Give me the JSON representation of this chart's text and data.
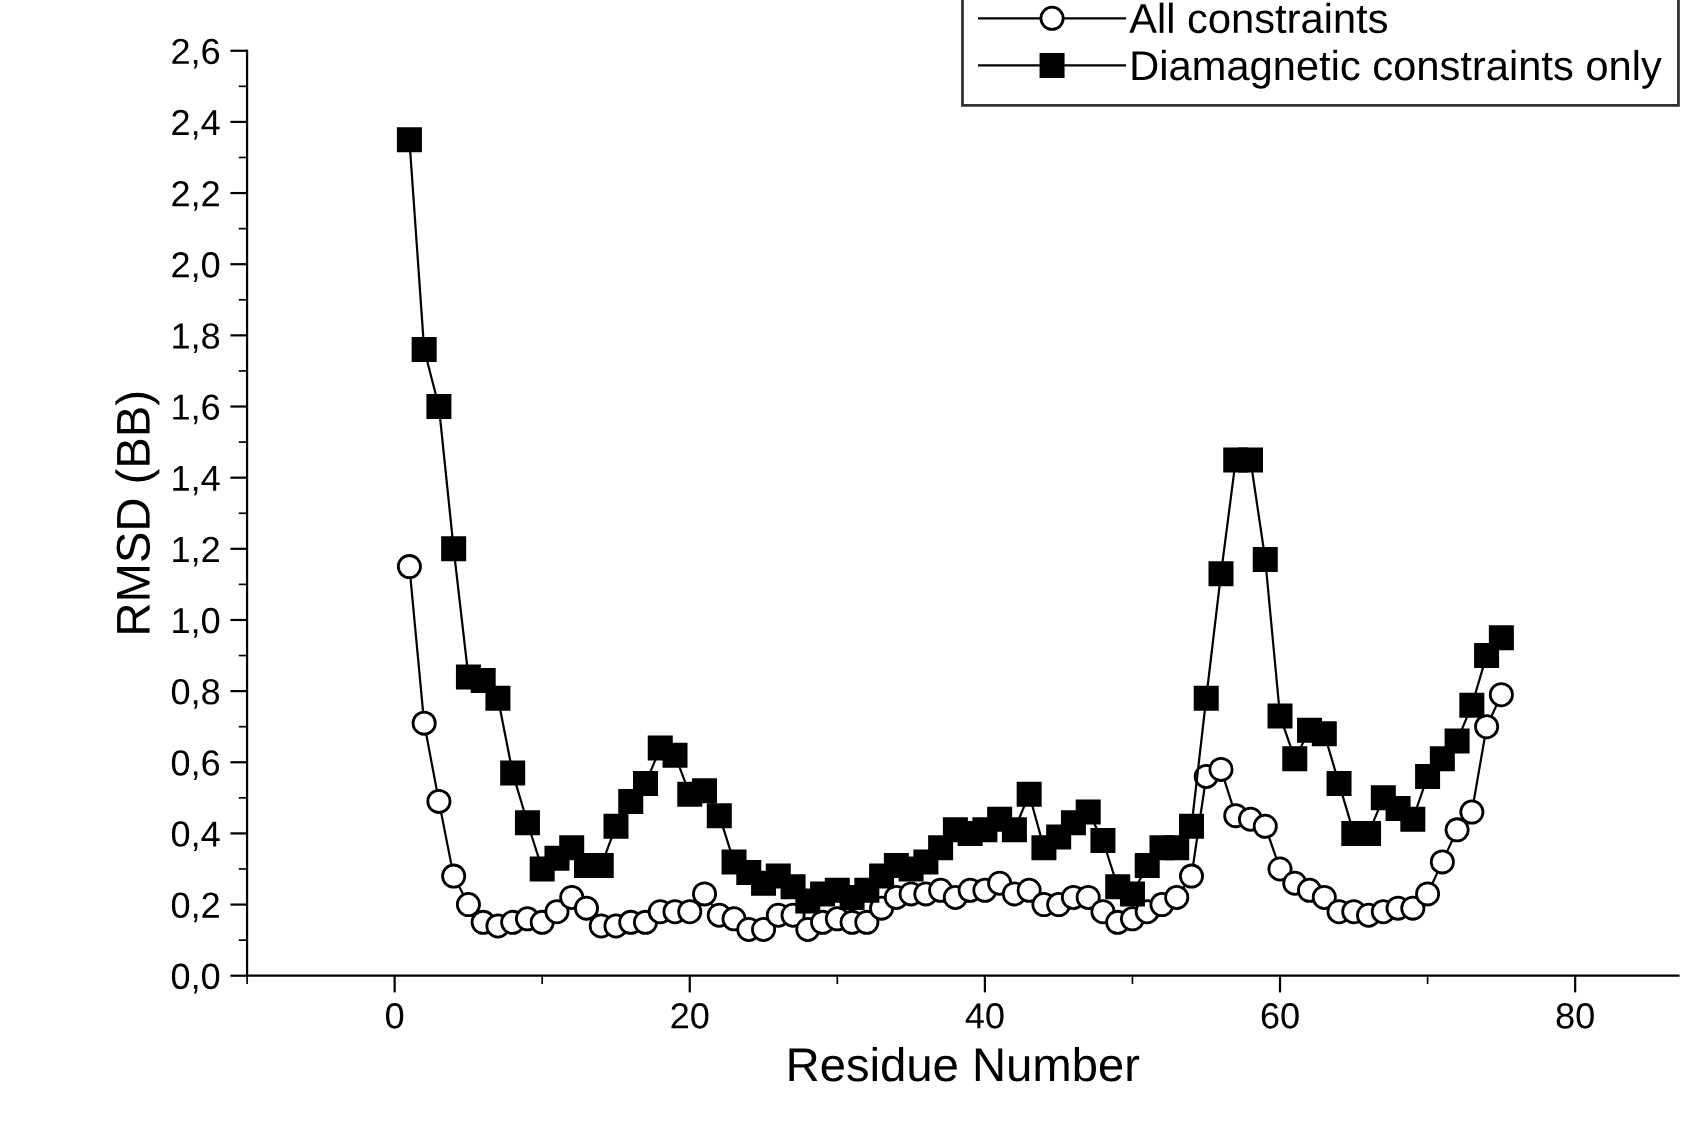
{
  "chart_data": {
    "type": "line",
    "xlabel": "Residue Number",
    "ylabel": "RMSD (BB)",
    "x": [
      1,
      2,
      3,
      4,
      5,
      6,
      7,
      8,
      9,
      10,
      11,
      12,
      13,
      14,
      15,
      16,
      17,
      18,
      19,
      20,
      21,
      22,
      23,
      24,
      25,
      26,
      27,
      28,
      29,
      30,
      31,
      32,
      33,
      34,
      35,
      36,
      37,
      38,
      39,
      40,
      41,
      42,
      43,
      44,
      45,
      46,
      47,
      48,
      49,
      50,
      51,
      52,
      53,
      54,
      55,
      56,
      57,
      58,
      59,
      60,
      61,
      62,
      63,
      64,
      65,
      66,
      67,
      68,
      69,
      70,
      71,
      72,
      73,
      74,
      75
    ],
    "series": [
      {
        "name": "All constraints",
        "color": "#000000",
        "marker": "circle",
        "values": [
          1.15,
          0.71,
          0.49,
          0.28,
          0.2,
          0.15,
          0.14,
          0.15,
          0.16,
          0.15,
          0.18,
          0.22,
          0.19,
          0.14,
          0.14,
          0.15,
          0.15,
          0.18,
          0.18,
          0.18,
          0.23,
          0.17,
          0.16,
          0.13,
          0.13,
          0.17,
          0.17,
          0.13,
          0.15,
          0.16,
          0.15,
          0.15,
          0.19,
          0.22,
          0.23,
          0.23,
          0.24,
          0.22,
          0.24,
          0.24,
          0.26,
          0.23,
          0.24,
          0.2,
          0.2,
          0.22,
          0.22,
          0.18,
          0.15,
          0.16,
          0.18,
          0.2,
          0.22,
          0.28,
          0.56,
          0.58,
          0.45,
          0.44,
          0.42,
          0.3,
          0.26,
          0.24,
          0.22,
          0.18,
          0.18,
          0.17,
          0.18,
          0.19,
          0.19,
          0.23,
          0.32,
          0.41,
          0.46,
          0.7,
          0.79
        ]
      },
      {
        "name": "Diamagnetic constraints only",
        "color": "#000000",
        "marker": "square",
        "values": [
          2.35,
          1.76,
          1.6,
          1.2,
          0.84,
          0.83,
          0.78,
          0.57,
          0.43,
          0.3,
          0.33,
          0.36,
          0.31,
          0.31,
          0.42,
          0.49,
          0.54,
          0.64,
          0.62,
          0.51,
          0.52,
          0.45,
          0.32,
          0.29,
          0.26,
          0.28,
          0.25,
          0.21,
          0.23,
          0.24,
          0.22,
          0.24,
          0.28,
          0.31,
          0.3,
          0.32,
          0.36,
          0.41,
          0.4,
          0.41,
          0.44,
          0.41,
          0.51,
          0.36,
          0.39,
          0.43,
          0.46,
          0.38,
          0.25,
          0.23,
          0.31,
          0.36,
          0.36,
          0.42,
          0.78,
          1.13,
          1.45,
          1.45,
          1.17,
          0.73,
          0.61,
          0.69,
          0.68,
          0.54,
          0.4,
          0.4,
          0.5,
          0.47,
          0.44,
          0.56,
          0.61,
          0.66,
          0.76,
          0.9,
          0.95
        ]
      }
    ],
    "xlim": [
      -10,
      87
    ],
    "ylim": [
      0,
      2.6
    ],
    "xticks": [
      {
        "value": -10,
        "label": null
      },
      0,
      {
        "value": 10,
        "label": null
      },
      20,
      {
        "value": 30,
        "label": null
      },
      40,
      {
        "value": 50,
        "label": null
      },
      60,
      {
        "value": 70,
        "label": null
      },
      80
    ],
    "yticks": [
      {
        "value": 0,
        "label": "0,0"
      },
      {
        "value": 0.1,
        "label": null
      },
      {
        "value": 0.2,
        "label": "0,2"
      },
      {
        "value": 0.3,
        "label": null
      },
      {
        "value": 0.4,
        "label": "0,4"
      },
      {
        "value": 0.5,
        "label": null
      },
      {
        "value": 0.6,
        "label": "0,6"
      },
      {
        "value": 0.7,
        "label": null
      },
      {
        "value": 0.8,
        "label": "0,8"
      },
      {
        "value": 0.9,
        "label": null
      },
      {
        "value": 1.0,
        "label": "1,0"
      },
      {
        "value": 1.1,
        "label": null
      },
      {
        "value": 1.2,
        "label": "1,2"
      },
      {
        "value": 1.3,
        "label": null
      },
      {
        "value": 1.4,
        "label": "1,4"
      },
      {
        "value": 1.5,
        "label": null
      },
      {
        "value": 1.6,
        "label": "1,6"
      },
      {
        "value": 1.7,
        "label": null
      },
      {
        "value": 1.8,
        "label": "1,8"
      },
      {
        "value": 1.9,
        "label": null
      },
      {
        "value": 2.0,
        "label": "2,0"
      },
      {
        "value": 2.1,
        "label": null
      },
      {
        "value": 2.2,
        "label": "2,2"
      },
      {
        "value": 2.3,
        "label": null
      },
      {
        "value": 2.4,
        "label": "2,4"
      },
      {
        "value": 2.5,
        "label": null
      },
      {
        "value": 2.6,
        "label": "2,6"
      }
    ],
    "grid": false,
    "legend": "top right",
    "line_style": "solid"
  }
}
